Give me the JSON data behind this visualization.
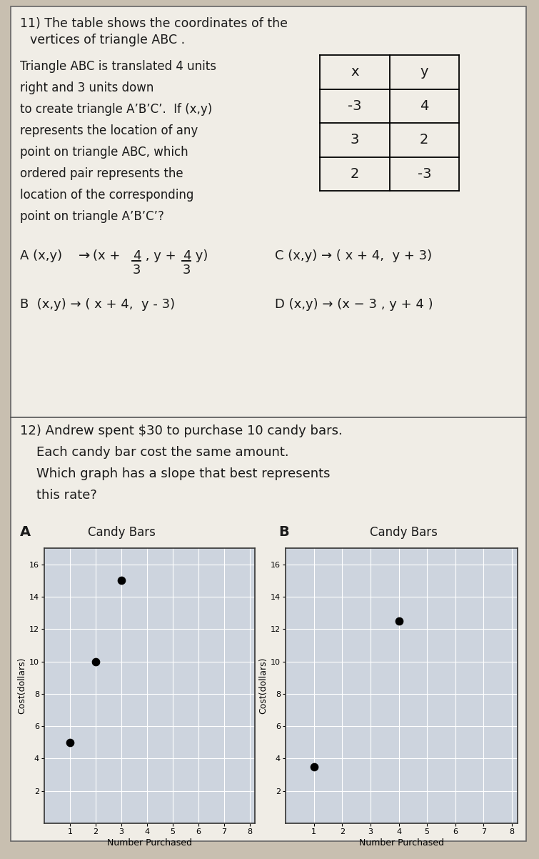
{
  "bg_color": "#c8bfb0",
  "paper_color": "#f0ede6",
  "table_headers": [
    "x",
    "y"
  ],
  "table_rows": [
    [
      -3,
      4
    ],
    [
      3,
      2
    ],
    [
      2,
      -3
    ]
  ],
  "graph_xlabel": "Number Purchased",
  "graph_ylabel": "Cost(dollars)",
  "graph_xticks": [
    1,
    2,
    3,
    4,
    5,
    6,
    7,
    8
  ],
  "graph_yticks": [
    2,
    4,
    6,
    8,
    10,
    12,
    14,
    16
  ],
  "graph_A_points": [
    [
      1,
      5
    ],
    [
      2,
      10
    ],
    [
      3,
      15
    ]
  ],
  "graph_B_points": [
    [
      1,
      3.5
    ],
    [
      4,
      12.5
    ]
  ]
}
